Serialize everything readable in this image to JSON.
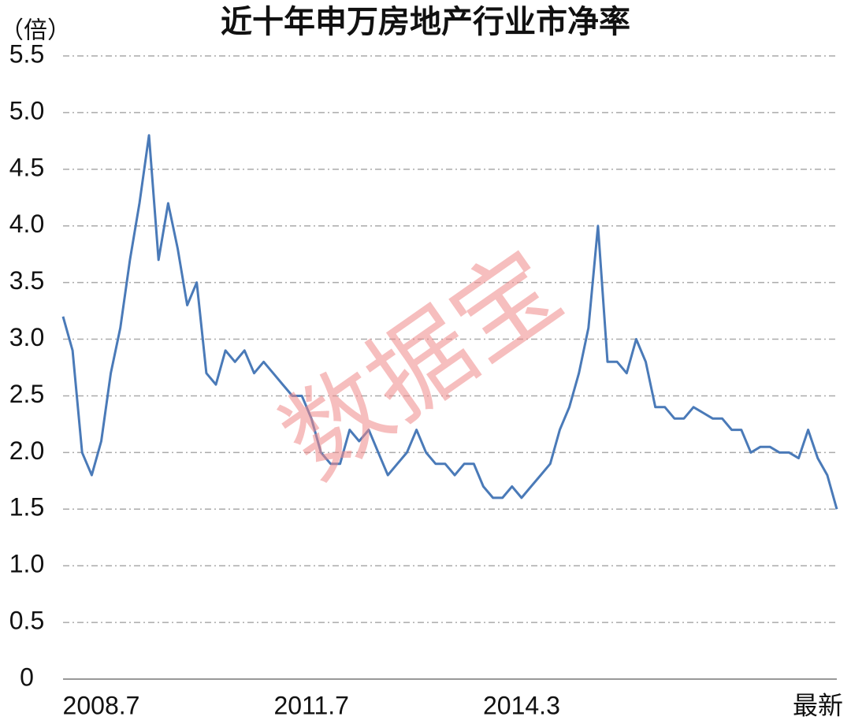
{
  "chart_data": {
    "type": "line",
    "title": "近十年申万房地产行业市净率",
    "y_label": "（倍）",
    "annotations": [
      "数据宝"
    ],
    "categories": [
      null,
      null,
      null,
      null,
      "2008.7",
      null,
      null,
      null,
      null,
      null,
      null,
      null,
      null,
      null,
      null,
      null,
      null,
      null,
      null,
      null,
      null,
      null,
      null,
      null,
      null,
      null,
      "2011.7",
      null,
      null,
      null,
      null,
      null,
      null,
      null,
      null,
      null,
      null,
      null,
      null,
      null,
      null,
      null,
      null,
      null,
      null,
      null,
      null,
      null,
      "2014.3",
      null,
      null,
      null,
      null,
      null,
      null,
      null,
      null,
      null,
      null,
      null,
      null,
      null,
      null,
      null,
      null,
      null,
      null,
      null,
      null,
      null,
      null,
      null,
      null,
      null,
      null,
      null,
      null,
      null,
      null,
      null,
      null,
      "最新"
    ],
    "series": [
      {
        "name": "市净率",
        "color": "#4a7ab8",
        "values": [
          3.2,
          2.9,
          2.0,
          1.8,
          2.1,
          2.7,
          3.1,
          3.7,
          4.2,
          4.8,
          3.7,
          4.2,
          3.8,
          3.3,
          3.5,
          2.7,
          2.6,
          2.9,
          2.8,
          2.9,
          2.7,
          2.8,
          2.7,
          2.6,
          2.5,
          2.5,
          2.3,
          2.0,
          1.9,
          1.9,
          2.2,
          2.1,
          2.2,
          2.0,
          1.8,
          1.9,
          2.0,
          2.2,
          2.0,
          1.9,
          1.9,
          1.8,
          1.9,
          1.9,
          1.7,
          1.6,
          1.6,
          1.7,
          1.6,
          1.7,
          1.8,
          1.9,
          2.2,
          2.4,
          2.7,
          3.1,
          4.0,
          2.8,
          2.8,
          2.7,
          3.0,
          2.8,
          2.4,
          2.4,
          2.3,
          2.3,
          2.4,
          2.35,
          2.3,
          2.3,
          2.2,
          2.2,
          2.0,
          2.05,
          2.05,
          2.0,
          2.0,
          1.95,
          2.2,
          1.95,
          1.8,
          1.5
        ]
      }
    ],
    "ylim": [
      0,
      5.5
    ],
    "yticks": [
      0,
      0.5,
      {
        "value": 1,
        "label": "1.0"
      },
      1.5,
      {
        "value": 2,
        "label": "2.0"
      },
      2.5,
      {
        "value": 3,
        "label": "3.0"
      },
      3.5,
      {
        "value": 4,
        "label": "4.0"
      },
      4.5,
      {
        "value": 5,
        "label": "5.0"
      },
      5.5
    ],
    "grid": true
  }
}
